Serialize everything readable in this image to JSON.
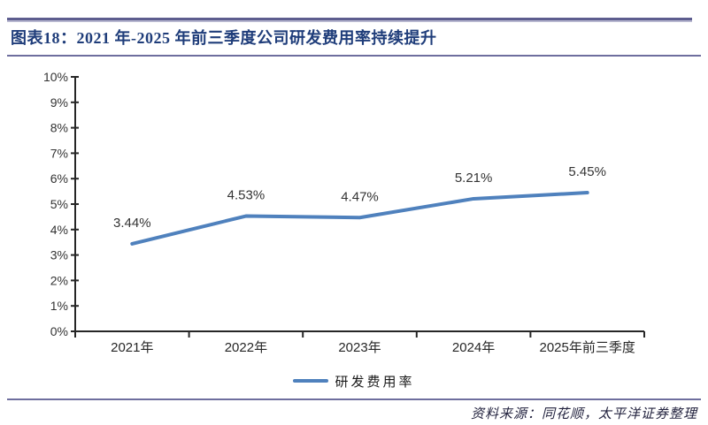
{
  "header": {
    "title": "图表18：2021 年-2025 年前三季度公司研发费用率持续提升"
  },
  "footer": {
    "source": "资料来源：同花顺，太平洋证券整理"
  },
  "colors": {
    "rule": "#5d5d8f",
    "title_text": "#1f3d7a",
    "line": "#4f81bd",
    "axis": "#262626",
    "tick_label": "#333333",
    "data_label": "#333333",
    "source_text": "#23233f"
  },
  "chart_data": {
    "type": "line",
    "title": "图表18：2021 年-2025 年前三季度公司研发费用率持续提升",
    "categories": [
      "2021年",
      "2022年",
      "2023年",
      "2024年",
      "2025年前三季度"
    ],
    "series": [
      {
        "name": "研发费用率",
        "color": "#4f81bd",
        "values": [
          3.44,
          4.53,
          4.47,
          5.21,
          5.45
        ],
        "point_labels": [
          "3.44%",
          "4.53%",
          "4.47%",
          "5.21%",
          "5.45%"
        ]
      }
    ],
    "xlabel": "",
    "ylabel": "",
    "ylim": [
      0,
      10
    ],
    "y_tick_step": 1,
    "y_tick_labels": [
      "0%",
      "1%",
      "2%",
      "3%",
      "4%",
      "5%",
      "6%",
      "7%",
      "8%",
      "9%",
      "10%"
    ],
    "grid": false,
    "legend": {
      "position": "bottom",
      "entries": [
        "研发费用率"
      ]
    },
    "source_note": "资料来源：同花顺，太平洋证券整理"
  }
}
